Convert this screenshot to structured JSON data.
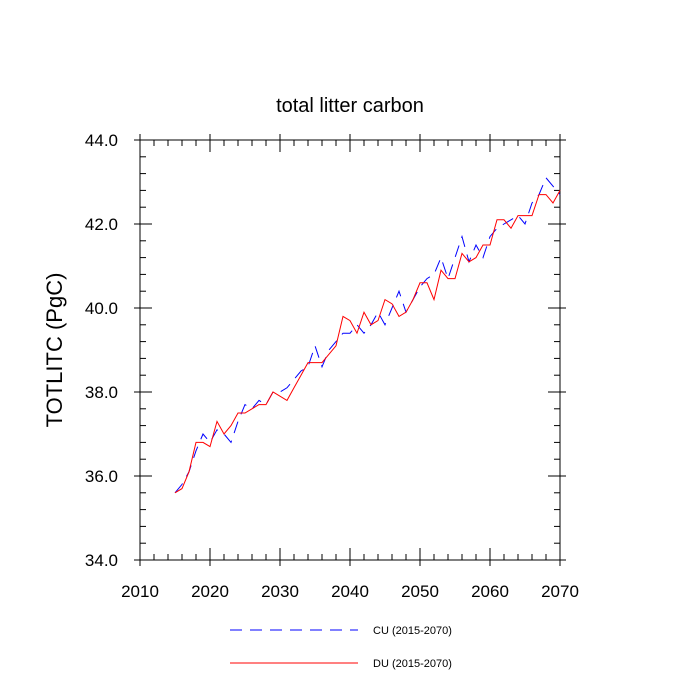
{
  "chart_data": {
    "type": "line",
    "title": "total litter carbon",
    "xlabel": "",
    "ylabel": "TOTLITC  (PgC)",
    "xlim": [
      2010,
      2070
    ],
    "ylim": [
      34.0,
      44.0
    ],
    "x_ticks": [
      2010,
      2020,
      2030,
      2040,
      2050,
      2060,
      2070
    ],
    "x_tick_labels": [
      "2010",
      "2020",
      "2030",
      "2040",
      "2050",
      "2060",
      "2070"
    ],
    "y_ticks": [
      34.0,
      36.0,
      38.0,
      40.0,
      42.0,
      44.0
    ],
    "y_tick_labels": [
      "34.0",
      "36.0",
      "38.0",
      "40.0",
      "42.0",
      "44.0"
    ],
    "grid": false,
    "legend_position": "bottom",
    "x": [
      2015,
      2016,
      2017,
      2018,
      2019,
      2020,
      2021,
      2022,
      2023,
      2024,
      2025,
      2026,
      2027,
      2028,
      2029,
      2030,
      2031,
      2032,
      2033,
      2034,
      2035,
      2036,
      2037,
      2038,
      2039,
      2040,
      2041,
      2042,
      2043,
      2044,
      2045,
      2046,
      2047,
      2048,
      2049,
      2050,
      2051,
      2052,
      2053,
      2054,
      2055,
      2056,
      2057,
      2058,
      2059,
      2060,
      2061,
      2062,
      2063,
      2064,
      2065,
      2066,
      2067,
      2068,
      2069,
      2070
    ],
    "series": [
      {
        "name": "CU (2015-2070)",
        "color": "#0000ff",
        "dash": "dashed",
        "values": [
          35.6,
          35.8,
          36.1,
          36.6,
          37.0,
          36.8,
          37.1,
          37.0,
          36.8,
          37.3,
          37.7,
          37.6,
          37.8,
          37.7,
          38.0,
          38.0,
          38.1,
          38.3,
          38.5,
          38.6,
          39.1,
          38.6,
          39.0,
          39.2,
          39.4,
          39.4,
          39.6,
          39.4,
          39.6,
          39.9,
          39.6,
          40.0,
          40.4,
          39.9,
          40.2,
          40.5,
          40.7,
          40.8,
          41.2,
          40.7,
          41.2,
          41.7,
          41.1,
          41.5,
          41.2,
          41.7,
          41.9,
          42.0,
          42.1,
          42.2,
          42.0,
          42.5,
          42.7,
          43.1,
          42.9,
          42.7
        ]
      },
      {
        "name": "DU (2015-2070)",
        "color": "#ff0000",
        "dash": "solid",
        "values": [
          35.6,
          35.7,
          36.1,
          36.8,
          36.8,
          36.7,
          37.3,
          37.0,
          37.2,
          37.5,
          37.5,
          37.6,
          37.7,
          37.7,
          38.0,
          37.9,
          37.8,
          38.1,
          38.4,
          38.7,
          38.7,
          38.7,
          38.9,
          39.1,
          39.8,
          39.7,
          39.4,
          39.9,
          39.6,
          39.7,
          40.2,
          40.1,
          39.8,
          39.9,
          40.2,
          40.6,
          40.6,
          40.2,
          40.9,
          40.7,
          40.7,
          41.3,
          41.1,
          41.2,
          41.5,
          41.5,
          42.1,
          42.1,
          41.9,
          42.2,
          42.2,
          42.2,
          42.7,
          42.7,
          42.5,
          42.8
        ]
      }
    ]
  }
}
